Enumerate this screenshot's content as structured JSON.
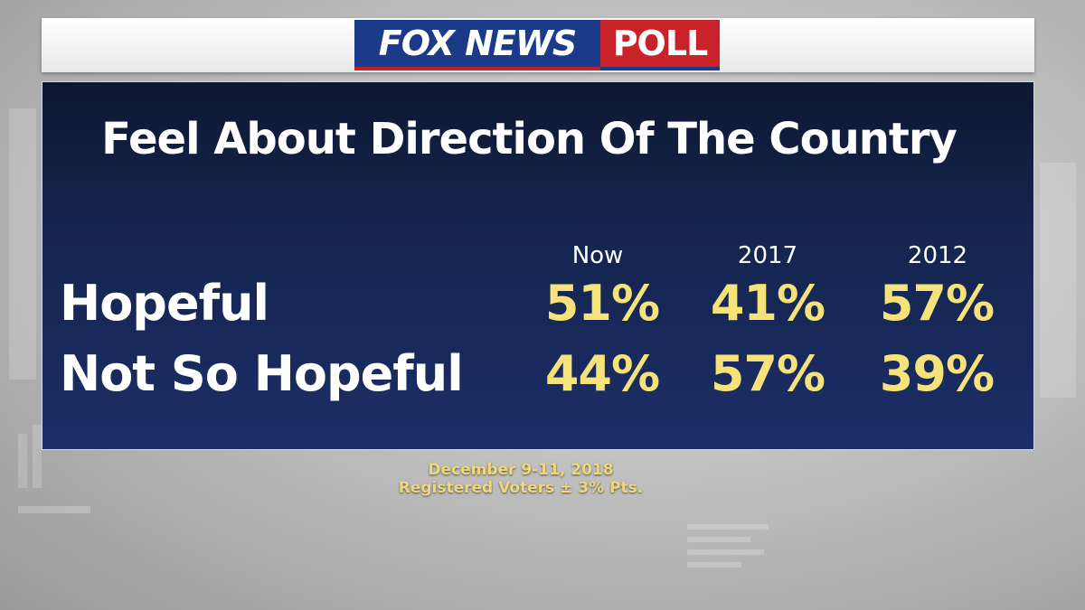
{
  "logo": {
    "fox_news": "FOX NEWS",
    "poll": "POLL"
  },
  "chart_data": {
    "type": "table",
    "title": "Feel About Direction Of The Country",
    "columns": [
      "Now",
      "2017",
      "2012"
    ],
    "rows": [
      {
        "label": "Hopeful",
        "values": [
          "51%",
          "41%",
          "57%"
        ]
      },
      {
        "label": "Not So Hopeful",
        "values": [
          "44%",
          "57%",
          "39%"
        ]
      }
    ]
  },
  "footnote": {
    "date": "December 9-11, 2018",
    "sample": "Registered Voters ± 3% Pts."
  },
  "colors": {
    "panel": "#14244d",
    "value_text": "#f6e27a",
    "fox_blue": "#1b3a87",
    "poll_red": "#c9222b"
  }
}
